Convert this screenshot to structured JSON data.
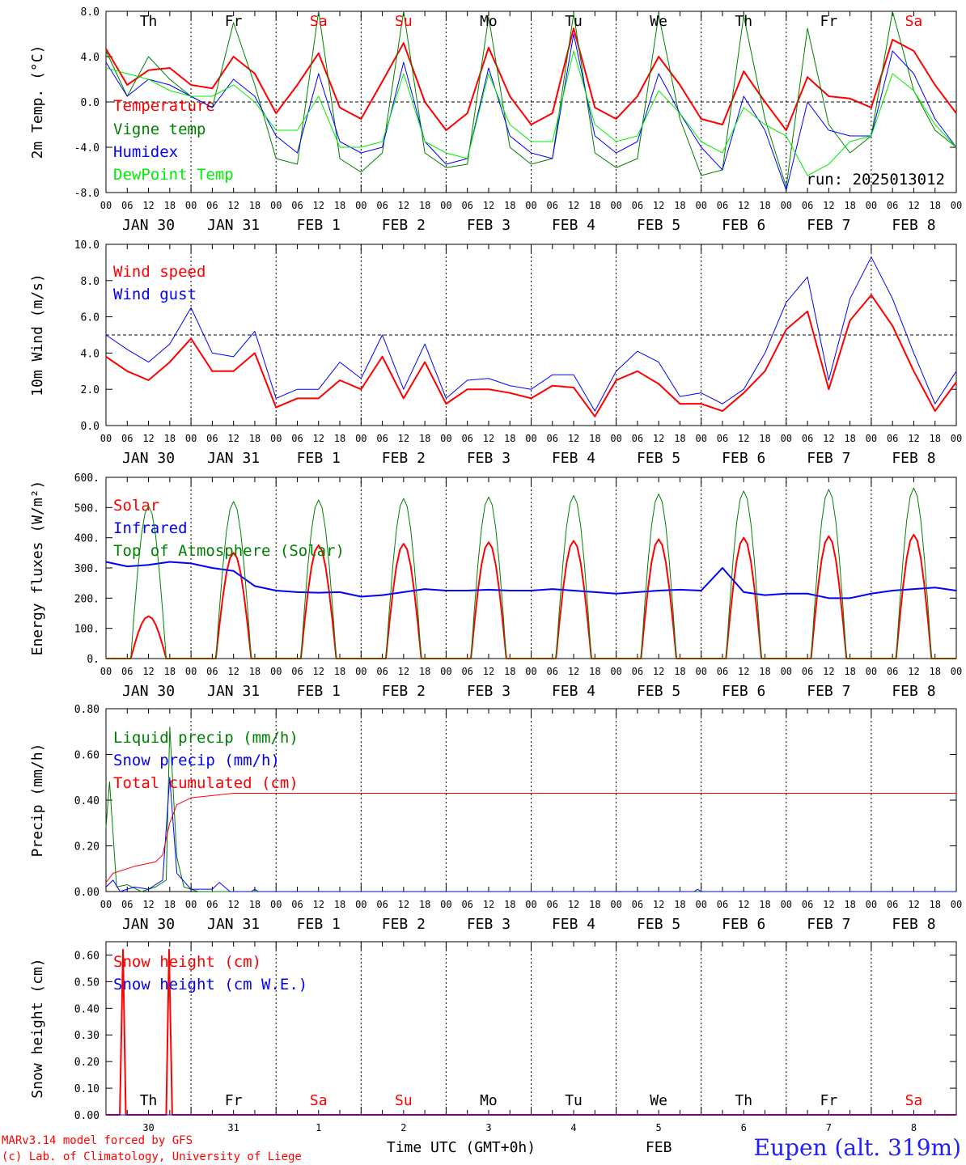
{
  "colors": {
    "red": "#ff0000",
    "green": "#008000",
    "blue": "#0000ff",
    "lightgreen": "#00ee00",
    "black": "#000000"
  },
  "days": {
    "dow": [
      "Th",
      "Fr",
      "Sa",
      "Su",
      "Mo",
      "Tu",
      "We",
      "Th",
      "Fr",
      "Sa"
    ],
    "weekend_flags": [
      false,
      false,
      true,
      true,
      false,
      false,
      false,
      false,
      false,
      true
    ],
    "dates": [
      "JAN 30",
      "JAN 31",
      "FEB  1",
      "FEB  2",
      "FEB  3",
      "FEB  4",
      "FEB  5",
      "FEB  6",
      "FEB  7",
      "FEB  8"
    ],
    "day_numbers": [
      "30",
      "31",
      "1",
      "2",
      "3",
      "4",
      "5",
      "6",
      "7",
      "8"
    ],
    "hours": [
      "00",
      "06",
      "12",
      "18"
    ],
    "final_hour": "00"
  },
  "run_label": "run: 2025013012",
  "footer": {
    "model": "MARv3.14 model forced by GFS",
    "copyright": "(c) Lab. of Climatology, University of Liege",
    "xlabel": "Time UTC (GMT+0h)",
    "month": "FEB",
    "station": "Eupen (alt. 319m)"
  },
  "chart_data": [
    {
      "type": "line",
      "ylabel": "2m Temp. (°C)",
      "ylim": [
        -8,
        8
      ],
      "yticks": [
        "8.0",
        "4.0",
        "0.0",
        "-4.0",
        "-8.0"
      ],
      "ytick_values": [
        8,
        4,
        0,
        -4,
        -8
      ],
      "reference_line": 0,
      "x": [
        0,
        6,
        12,
        18,
        24,
        30,
        36,
        42,
        48,
        54,
        60,
        66,
        72,
        78,
        84,
        90,
        96,
        102,
        108,
        114,
        120,
        126,
        132,
        138,
        144,
        150,
        156,
        162,
        168,
        174,
        180,
        186,
        192,
        198,
        204,
        210,
        216,
        222,
        228,
        234,
        240
      ],
      "series": [
        {
          "name": "Temperature",
          "color": "#ff0000",
          "width": 2,
          "values": [
            4.7,
            1.5,
            2.8,
            3.0,
            1.5,
            1.2,
            4.0,
            2.5,
            -1.0,
            1.5,
            4.3,
            -0.5,
            -1.5,
            1.8,
            5.2,
            0.0,
            -2.5,
            -1.0,
            4.8,
            0.5,
            -2.0,
            -1.0,
            6.5,
            -0.5,
            -1.5,
            0.5,
            4.0,
            1.5,
            -1.5,
            -2.0,
            2.7,
            0.0,
            -2.5,
            2.2,
            0.5,
            0.3,
            -0.5,
            5.5,
            4.5,
            1.5,
            -1.0
          ]
        },
        {
          "name": "Vigne temp",
          "color": "#008000",
          "width": 1,
          "values": [
            4.5,
            0.5,
            4.0,
            2.0,
            0.5,
            -0.5,
            7.0,
            1.5,
            -5.0,
            -5.5,
            8.0,
            -5.0,
            -6.2,
            -4.5,
            8.0,
            -4.5,
            -5.8,
            -5.5,
            7.5,
            -4.0,
            -5.5,
            -5.0,
            7.8,
            -4.5,
            -5.8,
            -5.0,
            7.7,
            -1.5,
            -6.5,
            -6.0,
            7.6,
            -1.5,
            -7.5,
            6.5,
            -2.0,
            -4.5,
            -3.0,
            8.0,
            1.0,
            -2.5,
            -4.0
          ]
        },
        {
          "name": "Humidex",
          "color": "#0000ff",
          "width": 1,
          "values": [
            3.5,
            0.5,
            2.0,
            1.5,
            0.5,
            -0.5,
            2.0,
            0.5,
            -3.0,
            -4.5,
            2.5,
            -3.5,
            -4.5,
            -4.0,
            3.5,
            -3.5,
            -5.5,
            -5.0,
            3.0,
            -3.0,
            -4.5,
            -5.0,
            6.0,
            -3.0,
            -4.5,
            -3.5,
            2.5,
            -1.0,
            -4.0,
            -6.0,
            0.5,
            -2.5,
            -7.8,
            0.0,
            -2.5,
            -3.0,
            -3.0,
            4.5,
            2.5,
            -1.5,
            -4.0
          ]
        },
        {
          "name": "DewPoint Temp",
          "color": "#00ee00",
          "width": 1,
          "values": [
            3.0,
            2.5,
            2.0,
            1.0,
            0.5,
            0.5,
            1.5,
            0.0,
            -2.5,
            -2.5,
            0.5,
            -4.0,
            -4.0,
            -3.5,
            2.5,
            -3.5,
            -4.5,
            -5.0,
            2.5,
            -2.0,
            -3.5,
            -3.5,
            4.5,
            -2.0,
            -3.5,
            -3.0,
            1.0,
            -1.0,
            -3.5,
            -4.5,
            -0.5,
            -2.0,
            -3.0,
            -6.5,
            -5.5,
            -3.5,
            -3.0,
            2.5,
            1.0,
            -2.0,
            -4.0
          ]
        }
      ]
    },
    {
      "type": "line",
      "ylabel": "10m Wind (m/s)",
      "ylim": [
        0,
        10
      ],
      "yticks": [
        "10.0",
        "8.0",
        "6.0",
        "4.0",
        "2.0",
        "0.0"
      ],
      "ytick_values": [
        10,
        8,
        6,
        4,
        2,
        0
      ],
      "reference_line": 5,
      "x": [
        0,
        6,
        12,
        18,
        24,
        30,
        36,
        42,
        48,
        54,
        60,
        66,
        72,
        78,
        84,
        90,
        96,
        102,
        108,
        114,
        120,
        126,
        132,
        138,
        144,
        150,
        156,
        162,
        168,
        174,
        180,
        186,
        192,
        198,
        204,
        210,
        216,
        222,
        228,
        234,
        240
      ],
      "series": [
        {
          "name": "Wind speed",
          "color": "#ff0000",
          "width": 2,
          "values": [
            3.8,
            3.0,
            2.5,
            3.5,
            4.8,
            3.0,
            3.0,
            4.0,
            1.0,
            1.5,
            1.5,
            2.5,
            2.0,
            3.8,
            1.5,
            3.5,
            1.2,
            2.0,
            2.0,
            1.8,
            1.5,
            2.2,
            2.1,
            0.5,
            2.5,
            3.0,
            2.3,
            1.2,
            1.2,
            0.8,
            1.8,
            3.0,
            5.3,
            6.3,
            2.0,
            5.8,
            7.2,
            5.5,
            3.0,
            0.8,
            2.4
          ]
        },
        {
          "name": "Wind gust",
          "color": "#0000ff",
          "width": 1,
          "values": [
            5.0,
            4.2,
            3.5,
            4.5,
            6.5,
            4.0,
            3.8,
            5.2,
            1.5,
            2.0,
            2.0,
            3.5,
            2.6,
            5.0,
            2.0,
            4.5,
            1.5,
            2.5,
            2.6,
            2.2,
            2.0,
            2.8,
            2.8,
            0.8,
            3.0,
            4.1,
            3.5,
            1.6,
            1.8,
            1.2,
            2.0,
            4.0,
            6.8,
            8.2,
            2.5,
            7.0,
            9.3,
            7.0,
            4.0,
            1.2,
            3.0
          ]
        }
      ]
    },
    {
      "type": "line",
      "ylabel": "Energy fluxes (W/m²)",
      "ylim": [
        0,
        600
      ],
      "yticks": [
        "600.",
        "500.",
        "400.",
        "300.",
        "200.",
        "100.",
        "0."
      ],
      "ytick_values": [
        600,
        500,
        400,
        300,
        200,
        100,
        0
      ],
      "reference_line": null,
      "series": [
        {
          "name": "Solar",
          "color": "#ff0000",
          "width": 2,
          "peaks": [
            140,
            350,
            375,
            380,
            385,
            390,
            395,
            400,
            405,
            410
          ]
        },
        {
          "name": "Infrared",
          "color": "#0000ff",
          "width": 2,
          "x": [
            0,
            6,
            12,
            18,
            24,
            30,
            36,
            42,
            48,
            54,
            60,
            66,
            72,
            78,
            84,
            90,
            96,
            102,
            108,
            114,
            120,
            126,
            132,
            138,
            144,
            150,
            156,
            162,
            168,
            174,
            180,
            186,
            192,
            198,
            204,
            210,
            216,
            222,
            228,
            234,
            240
          ],
          "values": [
            320,
            305,
            310,
            320,
            315,
            300,
            290,
            240,
            225,
            220,
            218,
            220,
            205,
            210,
            220,
            230,
            225,
            225,
            228,
            225,
            225,
            230,
            225,
            220,
            215,
            220,
            225,
            228,
            225,
            300,
            220,
            210,
            215,
            215,
            200,
            200,
            215,
            225,
            230,
            235,
            225
          ]
        },
        {
          "name": "Top of Atmosphere (Solar)",
          "color": "#008000",
          "width": 1,
          "peaks": [
            505,
            520,
            525,
            530,
            535,
            540,
            545,
            555,
            560,
            565
          ]
        }
      ]
    },
    {
      "type": "line",
      "ylabel": "Precip (mm/h)",
      "ylim": [
        0,
        0.8
      ],
      "yticks": [
        "0.80",
        "0.60",
        "0.40",
        "0.20",
        "0.00"
      ],
      "ytick_values": [
        0.8,
        0.6,
        0.4,
        0.2,
        0
      ],
      "reference_line": null,
      "series": [
        {
          "name": "Liquid precip (mm/h)",
          "color": "#008000",
          "width": 1,
          "points": [
            [
              0,
              0.28
            ],
            [
              1,
              0.48
            ],
            [
              3,
              0.02
            ],
            [
              6,
              0.03
            ],
            [
              10,
              0.0
            ],
            [
              14,
              0.02
            ],
            [
              17,
              0.05
            ],
            [
              18,
              0.72
            ],
            [
              20,
              0.15
            ],
            [
              22,
              0.02
            ],
            [
              26,
              0.0
            ],
            [
              240,
              0.0
            ]
          ]
        },
        {
          "name": "Snow precip (mm/h)",
          "color": "#0000ff",
          "width": 1,
          "points": [
            [
              0,
              0.02
            ],
            [
              2,
              0.05
            ],
            [
              4,
              0.0
            ],
            [
              8,
              0.02
            ],
            [
              12,
              0.01
            ],
            [
              16,
              0.05
            ],
            [
              18,
              0.5
            ],
            [
              20,
              0.08
            ],
            [
              24,
              0.01
            ],
            [
              30,
              0.01
            ],
            [
              32,
              0.04
            ],
            [
              35,
              0.0
            ],
            [
              41,
              0.0
            ],
            [
              42,
              0.01
            ],
            [
              43,
              0.0
            ],
            [
              166,
              0.0
            ],
            [
              167,
              0.01
            ],
            [
              168,
              0.0
            ],
            [
              240,
              0.0
            ]
          ]
        },
        {
          "name": "Total cumulated (cm)",
          "color": "#ff0000",
          "width": 1,
          "points": [
            [
              0,
              0.04
            ],
            [
              2,
              0.08
            ],
            [
              8,
              0.11
            ],
            [
              14,
              0.13
            ],
            [
              16,
              0.16
            ],
            [
              18,
              0.3
            ],
            [
              20,
              0.38
            ],
            [
              24,
              0.41
            ],
            [
              30,
              0.42
            ],
            [
              36,
              0.43
            ],
            [
              240,
              0.43
            ]
          ]
        }
      ]
    },
    {
      "type": "line",
      "ylabel": "Snow height (cm)",
      "ylim": [
        0,
        0.65
      ],
      "yticks": [
        "0.60",
        "0.50",
        "0.40",
        "0.30",
        "0.20",
        "0.10",
        "0.00"
      ],
      "ytick_values": [
        0.6,
        0.5,
        0.4,
        0.3,
        0.2,
        0.1,
        0
      ],
      "reference_line": null,
      "series": [
        {
          "name": "Snow height (cm)",
          "color": "#ff0000",
          "width": 2,
          "points": [
            [
              0,
              0
            ],
            [
              3.9,
              0
            ],
            [
              4.8,
              0.62
            ],
            [
              5.6,
              0
            ],
            [
              17,
              0
            ],
            [
              17.8,
              0.62
            ],
            [
              18.7,
              0
            ],
            [
              240,
              0
            ]
          ]
        },
        {
          "name": "Snow height (cm W.E.)",
          "color": "#0000ff",
          "width": 1,
          "points": [
            [
              0,
              0
            ],
            [
              240,
              0
            ]
          ]
        }
      ]
    }
  ]
}
